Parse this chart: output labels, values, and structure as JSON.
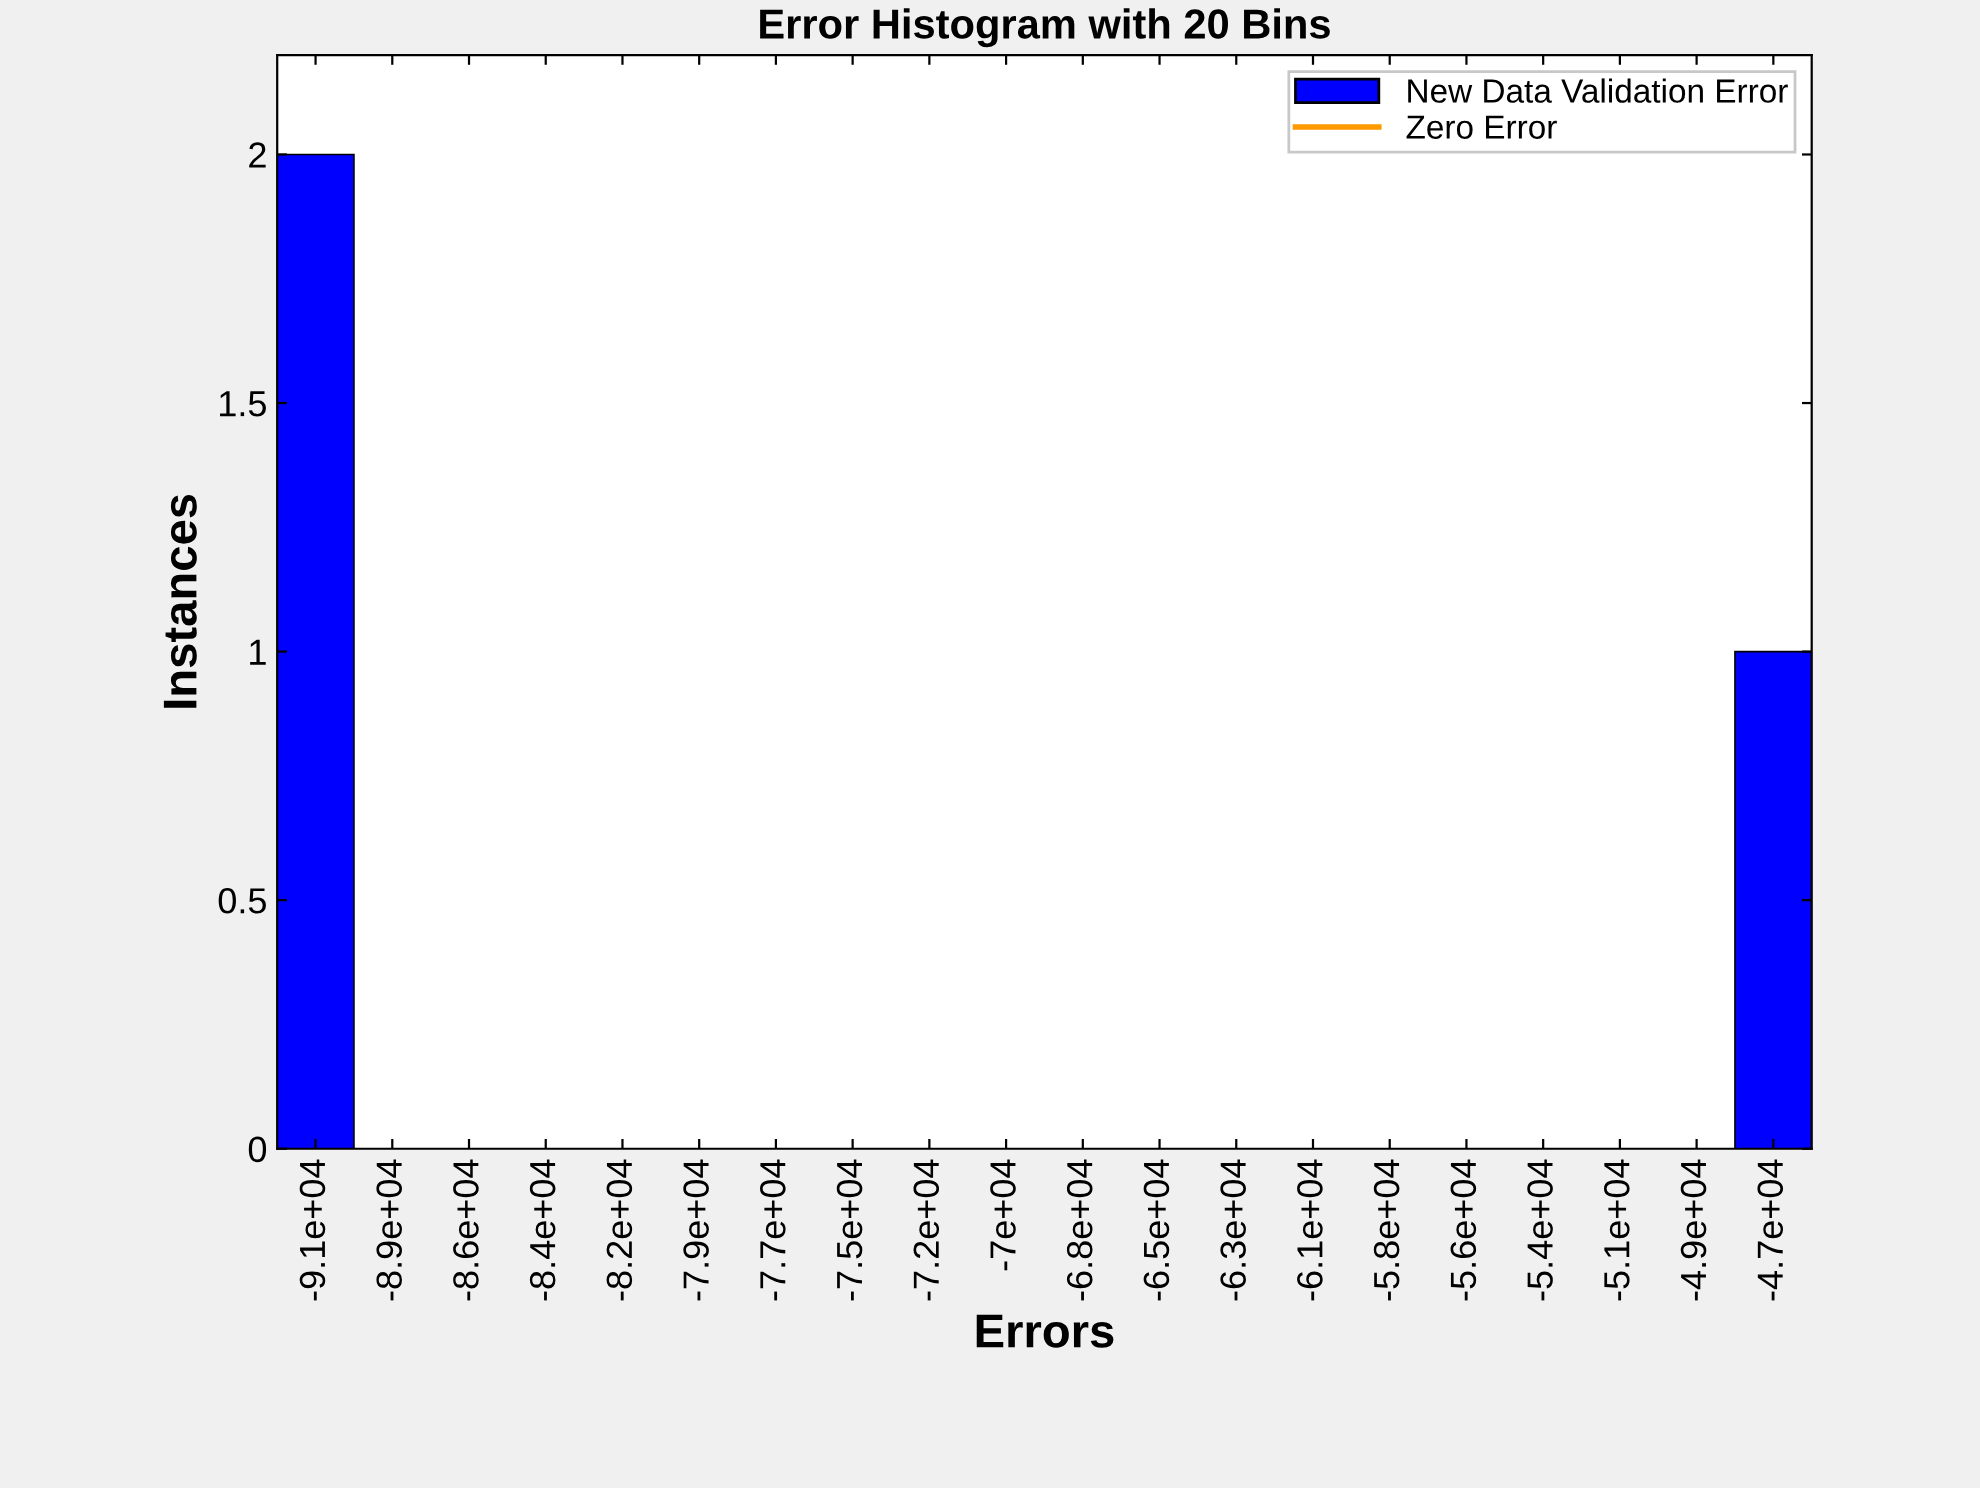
{
  "chart_data": {
    "type": "bar",
    "title": "Error Histogram with 20 Bins",
    "xlabel": "Errors",
    "ylabel": "Instances",
    "categories": [
      "-9.1e+04",
      "-8.9e+04",
      "-8.6e+04",
      "-8.4e+04",
      "-8.2e+04",
      "-7.9e+04",
      "-7.7e+04",
      "-7.5e+04",
      "-7.2e+04",
      "-7e+04",
      "-6.8e+04",
      "-6.5e+04",
      "-6.3e+04",
      "-6.1e+04",
      "-5.8e+04",
      "-5.6e+04",
      "-5.4e+04",
      "-5.1e+04",
      "-4.9e+04",
      "-4.7e+04"
    ],
    "series": [
      {
        "name": "New Data Validation Error",
        "color": "#0000ff",
        "values": [
          2,
          0,
          0,
          0,
          0,
          0,
          0,
          0,
          0,
          0,
          0,
          0,
          0,
          0,
          0,
          0,
          0,
          0,
          0,
          1
        ]
      },
      {
        "name": "Zero Error",
        "type": "line",
        "color": "#ff9900",
        "values": [
          null,
          null,
          null,
          null,
          null,
          null,
          null,
          null,
          null,
          null,
          null,
          null,
          null,
          null,
          null,
          null,
          null,
          null,
          null,
          null
        ]
      }
    ],
    "ylim": [
      0,
      2.2
    ],
    "yticks": [
      0,
      0.5,
      1,
      1.5,
      2
    ],
    "grid": false,
    "legend": "top right"
  }
}
